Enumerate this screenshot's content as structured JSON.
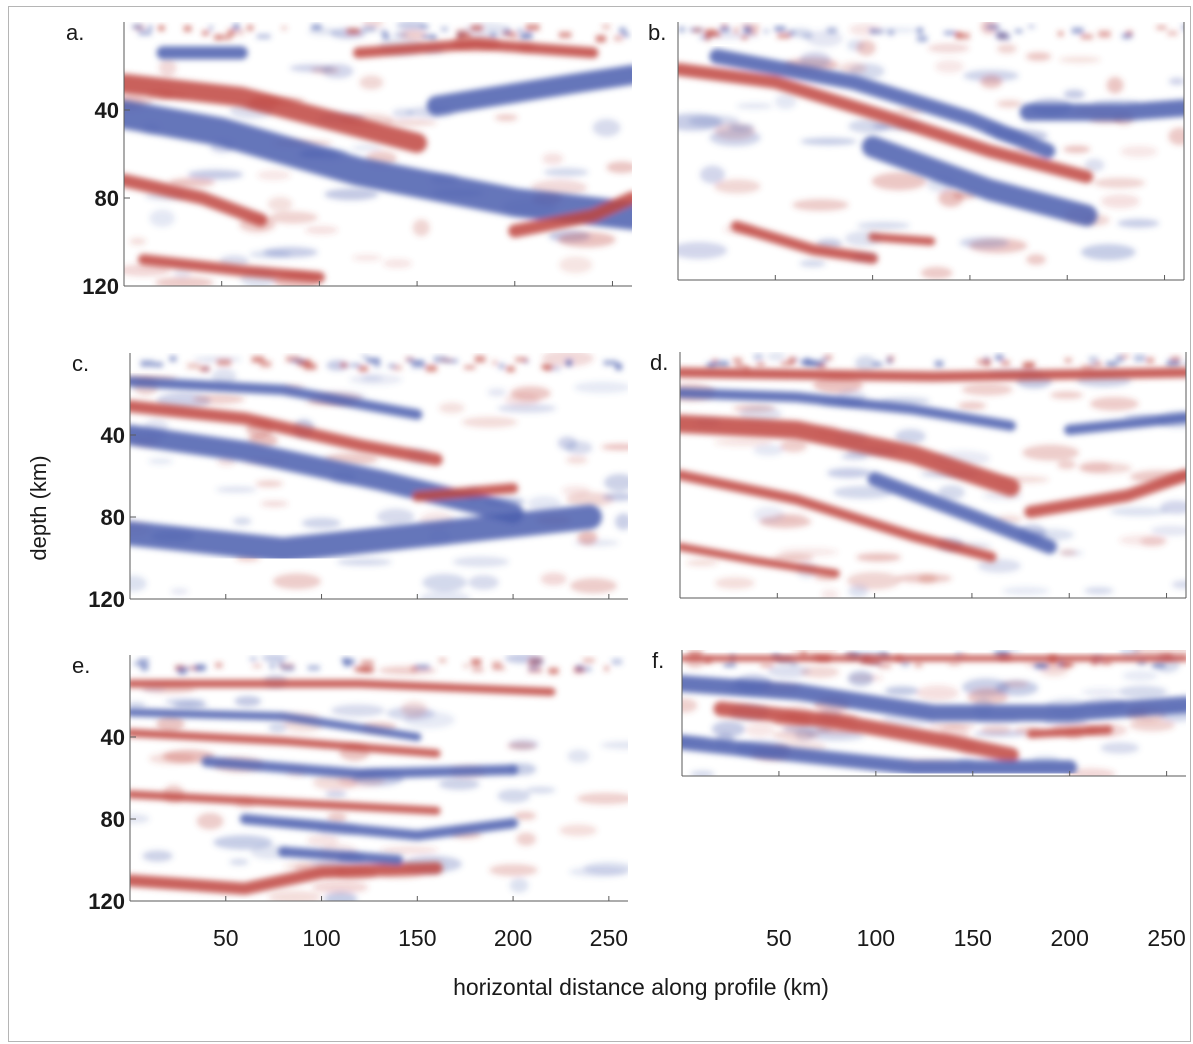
{
  "figure": {
    "ylabel": "depth (km)",
    "xlabel": "horizontal distance along profile (km)"
  },
  "colors": {
    "positive": "#c0473f",
    "negative": "#4a5eae",
    "frame": "#b5b5b5",
    "axis": "#5a5a5a",
    "text": "#1a1a1a"
  },
  "chart_data": [
    {
      "type": "heatmap",
      "panel_label": "a.",
      "xlim": [
        0,
        260
      ],
      "ylim": [
        0,
        120
      ],
      "yticks": [
        40,
        80,
        120
      ],
      "ytick_labels": [
        "40",
        "80",
        "120"
      ],
      "xticks": [
        50,
        100,
        150,
        200,
        250
      ],
      "xtick_labels": [],
      "dominant_reflector": "red dipping band from ~25 km depth at x=0 to ~60 km depth at x=140",
      "features": [
        {
          "polarity": "negative",
          "points": [
            [
              20,
              14
            ],
            [
              60,
              14
            ]
          ],
          "width_km": 6
        },
        {
          "polarity": "positive",
          "points": [
            [
              0,
              28
            ],
            [
              60,
              34
            ],
            [
              120,
              48
            ],
            [
              150,
              55
            ]
          ],
          "width_km": 9
        },
        {
          "polarity": "negative",
          "points": [
            [
              0,
              42
            ],
            [
              50,
              50
            ],
            [
              120,
              68
            ],
            [
              200,
              82
            ],
            [
              260,
              88
            ]
          ],
          "width_km": 13
        },
        {
          "polarity": "negative",
          "points": [
            [
              160,
              38
            ],
            [
              230,
              28
            ],
            [
              260,
              24
            ]
          ],
          "width_km": 9
        },
        {
          "polarity": "positive",
          "points": [
            [
              120,
              14
            ],
            [
              180,
              10
            ],
            [
              240,
              14
            ]
          ],
          "width_km": 5
        },
        {
          "polarity": "positive",
          "points": [
            [
              0,
              72
            ],
            [
              40,
              80
            ],
            [
              70,
              90
            ]
          ],
          "width_km": 6
        },
        {
          "polarity": "positive",
          "points": [
            [
              10,
              108
            ],
            [
              60,
              113
            ],
            [
              100,
              116
            ]
          ],
          "width_km": 5
        },
        {
          "polarity": "positive",
          "points": [
            [
              200,
              95
            ],
            [
              240,
              88
            ],
            [
              260,
              80
            ]
          ],
          "width_km": 6
        }
      ]
    },
    {
      "type": "heatmap",
      "panel_label": "b.",
      "xlim": [
        0,
        260
      ],
      "ylim": [
        0,
        120
      ],
      "yticks": [],
      "ytick_labels": [],
      "xticks": [
        50,
        100,
        150,
        200,
        250
      ],
      "xtick_labels": [],
      "dominant_reflector": "red dipping band from ~22 km depth at x=0 to ~70 km depth at x=200",
      "features": [
        {
          "polarity": "positive",
          "points": [
            [
              0,
              22
            ],
            [
              50,
              28
            ],
            [
              110,
              45
            ],
            [
              160,
              60
            ],
            [
              210,
              72
            ]
          ],
          "width_km": 6
        },
        {
          "polarity": "negative",
          "points": [
            [
              20,
              16
            ],
            [
              90,
              28
            ],
            [
              150,
              45
            ],
            [
              190,
              60
            ]
          ],
          "width_km": 7
        },
        {
          "polarity": "negative",
          "points": [
            [
              100,
              58
            ],
            [
              160,
              78
            ],
            [
              210,
              90
            ]
          ],
          "width_km": 10
        },
        {
          "polarity": "negative",
          "points": [
            [
              180,
              42
            ],
            [
              230,
              42
            ],
            [
              260,
              40
            ]
          ],
          "width_km": 8
        },
        {
          "polarity": "positive",
          "points": [
            [
              30,
              95
            ],
            [
              70,
              106
            ],
            [
              100,
              110
            ]
          ],
          "width_km": 5
        },
        {
          "polarity": "positive",
          "points": [
            [
              100,
              100
            ],
            [
              130,
              102
            ]
          ],
          "width_km": 4
        }
      ]
    },
    {
      "type": "heatmap",
      "panel_label": "c.",
      "xlim": [
        0,
        260
      ],
      "ylim": [
        0,
        120
      ],
      "yticks": [
        40,
        80,
        120
      ],
      "ytick_labels": [
        "40",
        "80",
        "120"
      ],
      "xticks": [
        50,
        100,
        150,
        200,
        250
      ],
      "xtick_labels": [],
      "dominant_reflector": "red dipping band from ~28 km depth at x=0 to ~55 km depth at x=150",
      "features": [
        {
          "polarity": "positive",
          "points": [
            [
              0,
              26
            ],
            [
              60,
              32
            ],
            [
              120,
              45
            ],
            [
              160,
              52
            ]
          ],
          "width_km": 6
        },
        {
          "polarity": "negative",
          "points": [
            [
              0,
              14
            ],
            [
              80,
              18
            ],
            [
              150,
              30
            ]
          ],
          "width_km": 5
        },
        {
          "polarity": "negative",
          "points": [
            [
              0,
              40
            ],
            [
              60,
              48
            ],
            [
              130,
              62
            ],
            [
              200,
              78
            ]
          ],
          "width_km": 10
        },
        {
          "polarity": "negative",
          "points": [
            [
              0,
              88
            ],
            [
              80,
              96
            ],
            [
              160,
              88
            ],
            [
              240,
              80
            ]
          ],
          "width_km": 12
        },
        {
          "polarity": "positive",
          "points": [
            [
              150,
              70
            ],
            [
              200,
              66
            ]
          ],
          "width_km": 5
        }
      ]
    },
    {
      "type": "heatmap",
      "panel_label": "d.",
      "xlim": [
        0,
        260
      ],
      "ylim": [
        0,
        120
      ],
      "yticks": [],
      "ytick_labels": [],
      "xticks": [
        50,
        100,
        150,
        200,
        250
      ],
      "xtick_labels": [],
      "dominant_reflector": "strong red/blue dipping pair from ~18 km depth at x=0 to ~70 km depth at x=160",
      "features": [
        {
          "polarity": "positive",
          "points": [
            [
              0,
              10
            ],
            [
              130,
              12
            ],
            [
              260,
              10
            ]
          ],
          "width_km": 5
        },
        {
          "polarity": "negative",
          "points": [
            [
              0,
              20
            ],
            [
              60,
              22
            ],
            [
              120,
              28
            ],
            [
              170,
              36
            ]
          ],
          "width_km": 5
        },
        {
          "polarity": "positive",
          "points": [
            [
              0,
              35
            ],
            [
              60,
              38
            ],
            [
              120,
              50
            ],
            [
              170,
              66
            ]
          ],
          "width_km": 9
        },
        {
          "polarity": "negative",
          "points": [
            [
              100,
              62
            ],
            [
              150,
              80
            ],
            [
              190,
              95
            ]
          ],
          "width_km": 7
        },
        {
          "polarity": "positive",
          "points": [
            [
              0,
              60
            ],
            [
              60,
              72
            ],
            [
              120,
              90
            ],
            [
              160,
              100
            ]
          ],
          "width_km": 5
        },
        {
          "polarity": "positive",
          "points": [
            [
              180,
              78
            ],
            [
              230,
              70
            ],
            [
              260,
              60
            ]
          ],
          "width_km": 6
        },
        {
          "polarity": "positive",
          "points": [
            [
              0,
              95
            ],
            [
              40,
              102
            ],
            [
              80,
              108
            ]
          ],
          "width_km": 4
        },
        {
          "polarity": "negative",
          "points": [
            [
              200,
              38
            ],
            [
              240,
              34
            ],
            [
              260,
              32
            ]
          ],
          "width_km": 5
        }
      ]
    },
    {
      "type": "heatmap",
      "panel_label": "e.",
      "xlim": [
        0,
        260
      ],
      "ylim": [
        0,
        120
      ],
      "yticks": [
        40,
        80,
        120
      ],
      "ytick_labels": [
        "40",
        "80",
        "120"
      ],
      "xticks": [
        50,
        100,
        150,
        200,
        250
      ],
      "xtick_labels": [
        "50",
        "100",
        "150",
        "200",
        "250"
      ],
      "dominant_reflector": "high-frequency layered reflectors; strong red band near 105–115 km depth",
      "features": [
        {
          "polarity": "positive",
          "points": [
            [
              0,
              14
            ],
            [
              120,
              14
            ],
            [
              220,
              18
            ]
          ],
          "width_km": 4
        },
        {
          "polarity": "negative",
          "points": [
            [
              0,
              28
            ],
            [
              80,
              30
            ],
            [
              150,
              40
            ]
          ],
          "width_km": 4
        },
        {
          "polarity": "positive",
          "points": [
            [
              0,
              38
            ],
            [
              80,
              42
            ],
            [
              160,
              48
            ]
          ],
          "width_km": 4
        },
        {
          "polarity": "negative",
          "points": [
            [
              40,
              52
            ],
            [
              120,
              58
            ],
            [
              200,
              56
            ]
          ],
          "width_km": 5
        },
        {
          "polarity": "positive",
          "points": [
            [
              0,
              68
            ],
            [
              80,
              72
            ],
            [
              160,
              76
            ]
          ],
          "width_km": 4
        },
        {
          "polarity": "negative",
          "points": [
            [
              60,
              80
            ],
            [
              150,
              88
            ],
            [
              200,
              82
            ]
          ],
          "width_km": 5
        },
        {
          "polarity": "positive",
          "points": [
            [
              0,
              110
            ],
            [
              60,
              114
            ],
            [
              100,
              106
            ],
            [
              160,
              104
            ]
          ],
          "width_km": 6
        },
        {
          "polarity": "negative",
          "points": [
            [
              80,
              96
            ],
            [
              140,
              100
            ]
          ],
          "width_km": 5
        }
      ]
    },
    {
      "type": "heatmap",
      "panel_label": "f.",
      "xlim": [
        0,
        260
      ],
      "ylim": [
        0,
        60
      ],
      "yticks": [],
      "ytick_labels": [],
      "xticks": [
        50,
        100,
        150,
        200,
        250
      ],
      "xtick_labels": [
        "50",
        "100",
        "150",
        "200",
        "250"
      ],
      "dominant_reflector": "smooth red dipping band from ~28 km depth at x=20 to ~50 km depth at x=160",
      "features": [
        {
          "polarity": "positive",
          "points": [
            [
              0,
              4
            ],
            [
              130,
              4
            ],
            [
              260,
              4
            ]
          ],
          "width_km": 3
        },
        {
          "polarity": "negative",
          "points": [
            [
              0,
              16
            ],
            [
              60,
              20
            ],
            [
              130,
              30
            ],
            [
              200,
              30
            ],
            [
              260,
              26
            ]
          ],
          "width_km": 8
        },
        {
          "polarity": "positive",
          "points": [
            [
              20,
              28
            ],
            [
              80,
              34
            ],
            [
              140,
              44
            ],
            [
              170,
              50
            ]
          ],
          "width_km": 7
        },
        {
          "polarity": "negative",
          "points": [
            [
              0,
              44
            ],
            [
              60,
              50
            ],
            [
              120,
              56
            ],
            [
              200,
              56
            ]
          ],
          "width_km": 7
        },
        {
          "polarity": "positive",
          "points": [
            [
              180,
              40
            ],
            [
              220,
              38
            ]
          ],
          "width_km": 4
        }
      ]
    }
  ]
}
